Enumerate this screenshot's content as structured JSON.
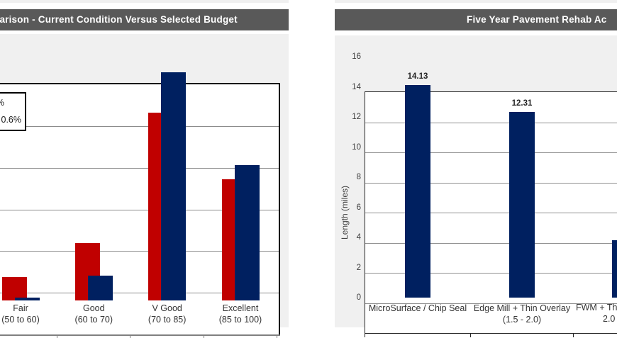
{
  "ui": {
    "left_chart": {
      "title_visible": "parison - Current Condition Versus Selected Budget",
      "title_bar_color": "#595959",
      "legend_box": {
        "line1_visible": "%",
        "line2_visible": "0.6%"
      }
    },
    "right_chart": {
      "title_visible": "Five Year Pavement Rehab Ac",
      "title_bar_color": "#595959"
    }
  },
  "colors": {
    "title_bar": "#595959",
    "chart_background": "#f0f0f0",
    "plot_background": "#ffffff",
    "red_series": "#c00000",
    "blue_series": "#002060",
    "gridline_left": "#8c8c8c",
    "gridline_right": "#909090",
    "axis_left": "#808080",
    "axis_right": "#262626",
    "label_text": "#333333",
    "title_text": "#ffffff"
  },
  "chart_data": [
    {
      "id": "condition-comparison",
      "type": "bar",
      "title_visible": "parison - Current Condition Versus Selected Budget",
      "title_truncated_at_left_edge": true,
      "categories": [
        {
          "label": "Fair",
          "range": "(50 to 60)"
        },
        {
          "label": "Good",
          "range": "(60 to 70)"
        },
        {
          "label": "V Good",
          "range": "(70 to 85)"
        },
        {
          "label": "Excellent",
          "range": "(85 to 100)"
        }
      ],
      "series": [
        {
          "key": "current-condition-red",
          "color": "#c00000",
          "values": [
            5.6,
            13.8,
            45.0,
            29.1
          ]
        },
        {
          "key": "selected-budget-blue",
          "color": "#002060",
          "values": [
            0.6,
            5.9,
            54.7,
            32.5
          ]
        }
      ],
      "ylim": [
        0,
        60
      ],
      "gridline_step": 10,
      "y_axis_labels_visible": false,
      "values_estimated_from_pixels": true,
      "legend_visible_text_fragments": [
        "%",
        "0.6%"
      ],
      "grid": true,
      "legend_position": "top-left, clipped by screen edge"
    },
    {
      "id": "five-year-rehab-activity",
      "type": "bar",
      "title_visible": "Five Year Pavement Rehab Ac",
      "title_truncated_at_right_edge": true,
      "ylabel": "Length (miles)",
      "categories": [
        {
          "label": "MicroSurface / Chip Seal",
          "range": ""
        },
        {
          "label": "Edge Mill + Thin Overlay",
          "range": "(1.5 - 2.0)"
        },
        {
          "label": "FWM + Th",
          "range": "2.0",
          "truncated_at_right_edge": true
        }
      ],
      "values": [
        14.13,
        12.31,
        3.8
      ],
      "data_labels": [
        "14.13",
        "12.31",
        ""
      ],
      "third_value_estimated_bar_clipped": true,
      "bar_color": "#002060",
      "ylim": [
        0,
        16
      ],
      "ytick_step": 2,
      "ytick_labels": [
        "0",
        "2",
        "4",
        "6",
        "8",
        "10",
        "12",
        "14",
        "16"
      ],
      "grid": true
    }
  ]
}
